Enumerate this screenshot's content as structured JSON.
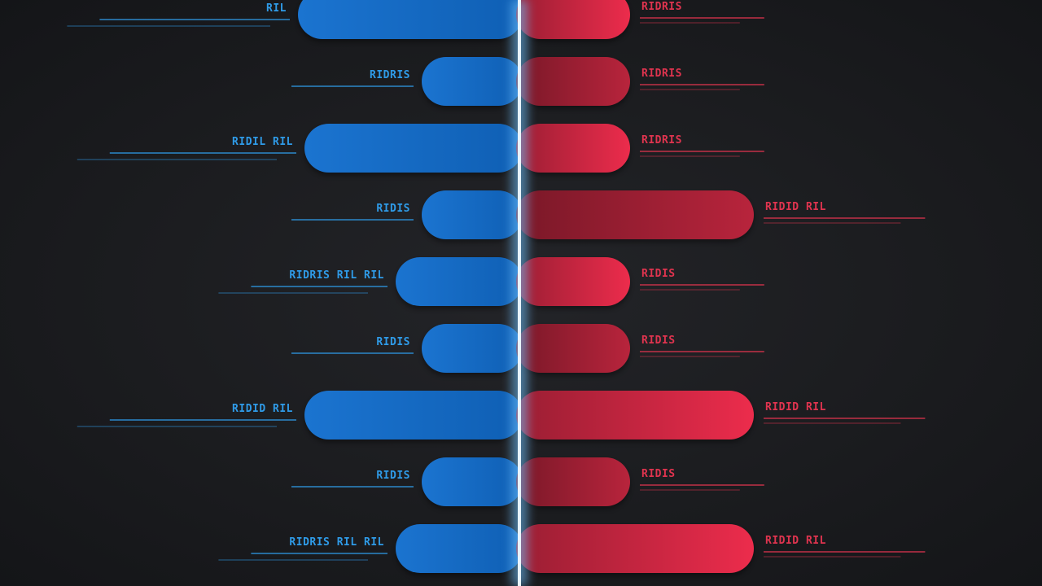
{
  "chart_data": {
    "type": "bar",
    "subtype": "diverging-butterfly",
    "title": "",
    "xlabel": "",
    "ylabel": "",
    "grid": false,
    "legend": "none",
    "center_divider": true,
    "rows": [
      {
        "left_label": "RIL",
        "right_label": "RIDRIS",
        "left_value": 0.68,
        "right_value": 0.34
      },
      {
        "left_label": "RIDRIS",
        "right_label": "RIDRIS",
        "left_value": 0.3,
        "right_value": 0.34
      },
      {
        "left_label": "RIDIL RIL",
        "right_label": "RIDRIS",
        "left_value": 0.66,
        "right_value": 0.34
      },
      {
        "left_label": "RIDIS",
        "right_label": "RIDID RIL",
        "left_value": 0.3,
        "right_value": 0.72
      },
      {
        "left_label": "RIDRIS RIL RIL",
        "right_label": "RIDIS",
        "left_value": 0.38,
        "right_value": 0.34
      },
      {
        "left_label": "RIDIS",
        "right_label": "RIDIS",
        "left_value": 0.3,
        "right_value": 0.34
      },
      {
        "left_label": "RIDID RIL",
        "right_label": "RIDID RIL",
        "left_value": 0.66,
        "right_value": 0.72
      },
      {
        "left_label": "RIDIS",
        "right_label": "RIDIS",
        "left_value": 0.3,
        "right_value": 0.34
      },
      {
        "left_label": "RIDRIS RIL RIL",
        "right_label": "RIDID RIL",
        "left_value": 0.38,
        "right_value": 0.72
      }
    ],
    "colors": {
      "left": "#1f78d1",
      "left_dark": "#0f4f94",
      "right": "#ef2d4e",
      "right_dark": "#8f1b2e",
      "left_text": "#2f9be8",
      "right_text": "#e0344f",
      "divider": "#e8f4ff",
      "divider_glow": "#6fc3ff"
    }
  }
}
